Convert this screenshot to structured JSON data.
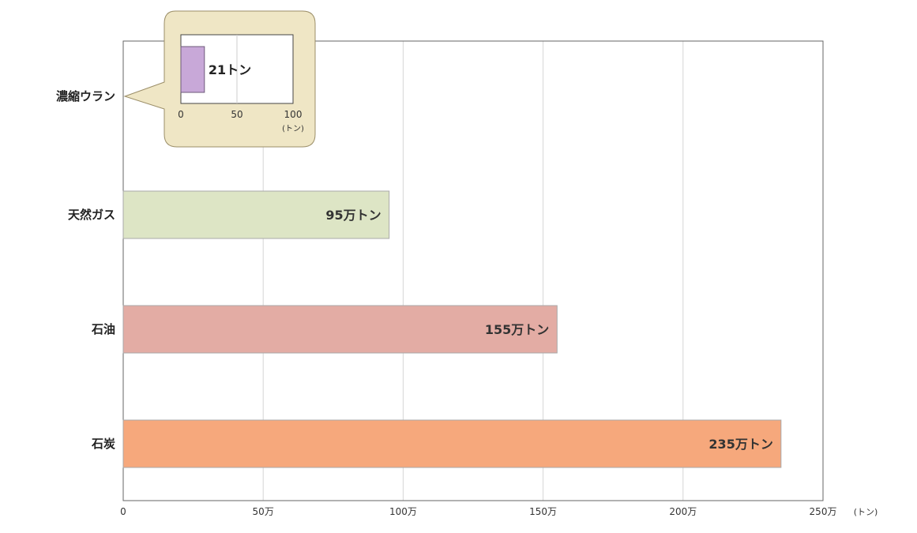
{
  "chart_data": {
    "type": "bar",
    "orientation": "horizontal",
    "categories": [
      "濃縮ウラン",
      "天然ガス",
      "石油",
      "石炭"
    ],
    "values": [
      null,
      950000,
      1550000,
      2350000
    ],
    "value_labels": [
      "",
      "95万トン",
      "155万トン",
      "235万トン"
    ],
    "colors": [
      "#c8a8d8",
      "#dde5c5",
      "#e3aca4",
      "#f6a87c"
    ],
    "xlim": [
      0,
      2500000
    ],
    "x_ticks": [
      0,
      500000,
      1000000,
      1500000,
      2000000,
      2500000
    ],
    "x_tick_labels": [
      "0",
      "50万",
      "100万",
      "150万",
      "200万",
      "250万"
    ],
    "x_unit": "(トン)",
    "grid": true,
    "inset": {
      "category": "濃縮ウラン",
      "value": 21,
      "value_label": "21トン",
      "color": "#c8a8d8",
      "xlim": [
        0,
        100
      ],
      "x_ticks": [
        0,
        50,
        100
      ],
      "x_tick_labels": [
        "0",
        "50",
        "100"
      ],
      "x_unit": "(トン)",
      "callout_color": "#efe6c5"
    }
  }
}
